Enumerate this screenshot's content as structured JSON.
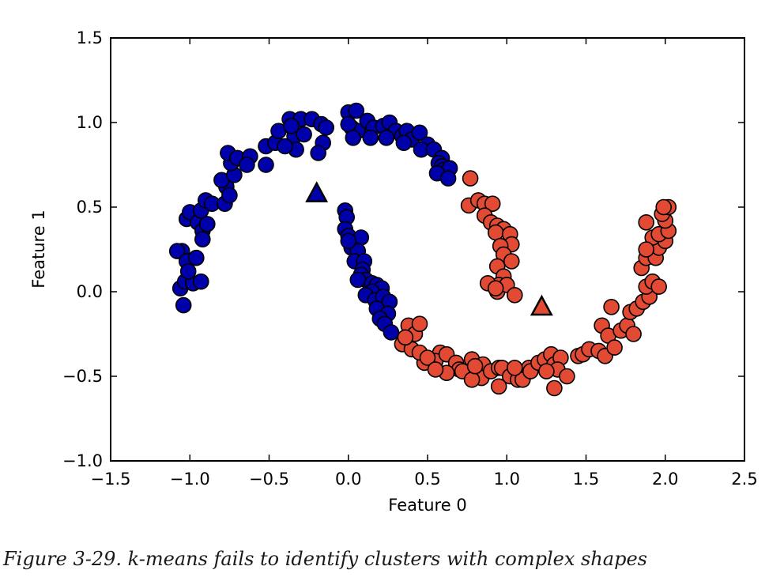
{
  "caption": "Figure 3-29. k-means fails to identify clusters with complex shapes",
  "chart_data": {
    "type": "scatter",
    "title": "",
    "xlabel": "Feature 0",
    "ylabel": "Feature 1",
    "xlim": [
      -1.5,
      2.5
    ],
    "ylim": [
      -1.0,
      1.5
    ],
    "xticks": [
      -1.5,
      -1.0,
      -0.5,
      0.0,
      0.5,
      1.0,
      1.5,
      2.0,
      2.5
    ],
    "xtick_labels": [
      "−1.5",
      "−1.0",
      "−0.5",
      "0.0",
      "0.5",
      "1.0",
      "1.5",
      "2.0",
      "2.5"
    ],
    "yticks": [
      -1.0,
      -0.5,
      0.0,
      0.5,
      1.0,
      1.5
    ],
    "ytick_labels": [
      "−1.0",
      "−0.5",
      "0.0",
      "0.5",
      "1.0",
      "1.5"
    ],
    "grid": false,
    "series": [
      {
        "color": "#0000aa",
        "marker": "circle",
        "points": [
          [
            -1.06,
            0.02
          ],
          [
            -1.04,
            -0.08
          ],
          [
            -1.03,
            0.06
          ],
          [
            -0.98,
            0.05
          ],
          [
            -1.05,
            0.24
          ],
          [
            -1.08,
            0.24
          ],
          [
            -1.02,
            0.18
          ],
          [
            -1.01,
            0.12
          ],
          [
            -0.93,
            0.06
          ],
          [
            -0.96,
            0.2
          ],
          [
            -1.02,
            0.43
          ],
          [
            -1.0,
            0.47
          ],
          [
            -0.95,
            0.41
          ],
          [
            -0.92,
            0.36
          ],
          [
            -0.92,
            0.31
          ],
          [
            -0.89,
            0.4
          ],
          [
            -0.93,
            0.48
          ],
          [
            -0.9,
            0.54
          ],
          [
            -0.86,
            0.52
          ],
          [
            -0.78,
            0.52
          ],
          [
            -0.77,
            0.62
          ],
          [
            -0.75,
            0.57
          ],
          [
            -0.8,
            0.66
          ],
          [
            -0.72,
            0.69
          ],
          [
            -0.74,
            0.76
          ],
          [
            -0.76,
            0.82
          ],
          [
            -0.7,
            0.79
          ],
          [
            -0.62,
            0.8
          ],
          [
            -0.64,
            0.75
          ],
          [
            -0.52,
            0.75
          ],
          [
            -0.52,
            0.86
          ],
          [
            -0.46,
            0.88
          ],
          [
            -0.44,
            0.95
          ],
          [
            -0.37,
            1.02
          ],
          [
            -0.34,
            0.92
          ],
          [
            -0.3,
            1.02
          ],
          [
            -0.28,
            0.93
          ],
          [
            -0.23,
            1.02
          ],
          [
            -0.17,
            0.99
          ],
          [
            -0.14,
            0.97
          ],
          [
            -0.16,
            0.88
          ],
          [
            -0.19,
            0.82
          ],
          [
            -0.33,
            0.84
          ],
          [
            -0.4,
            0.86
          ],
          [
            -0.36,
            0.98
          ],
          [
            0.0,
            1.06
          ],
          [
            0.05,
            1.07
          ],
          [
            0.02,
            0.97
          ],
          [
            0.06,
            0.95
          ],
          [
            0.0,
            0.99
          ],
          [
            0.12,
            1.01
          ],
          [
            0.16,
            0.97
          ],
          [
            0.22,
            0.98
          ],
          [
            0.26,
            1.0
          ],
          [
            0.3,
            0.95
          ],
          [
            0.34,
            0.92
          ],
          [
            0.37,
            0.95
          ],
          [
            0.4,
            0.9
          ],
          [
            0.45,
            0.94
          ],
          [
            0.5,
            0.87
          ],
          [
            0.46,
            0.84
          ],
          [
            0.54,
            0.84
          ],
          [
            0.59,
            0.79
          ],
          [
            0.57,
            0.76
          ],
          [
            0.59,
            0.74
          ],
          [
            0.61,
            0.72
          ],
          [
            0.6,
            0.72
          ],
          [
            0.64,
            0.73
          ],
          [
            0.56,
            0.7
          ],
          [
            0.63,
            0.67
          ],
          [
            0.35,
            0.88
          ],
          [
            0.14,
            0.91
          ],
          [
            0.24,
            0.91
          ],
          [
            0.03,
            0.91
          ],
          [
            -0.02,
            0.48
          ],
          [
            -0.01,
            0.44
          ],
          [
            -0.02,
            0.37
          ],
          [
            0.0,
            0.33
          ],
          [
            0.08,
            0.32
          ],
          [
            0.02,
            0.26
          ],
          [
            0.06,
            0.24
          ],
          [
            0.04,
            0.18
          ],
          [
            0.1,
            0.18
          ],
          [
            0.09,
            0.13
          ],
          [
            0.08,
            0.1
          ],
          [
            0.11,
            0.07
          ],
          [
            0.06,
            0.07
          ],
          [
            0.15,
            0.05
          ],
          [
            0.18,
            0.04
          ],
          [
            0.21,
            0.02
          ],
          [
            0.15,
            0.0
          ],
          [
            0.11,
            -0.02
          ],
          [
            0.17,
            -0.05
          ],
          [
            0.22,
            -0.03
          ],
          [
            0.26,
            -0.06
          ],
          [
            0.18,
            -0.1
          ],
          [
            0.25,
            -0.13
          ],
          [
            0.2,
            -0.16
          ],
          [
            0.23,
            -0.19
          ],
          [
            0.27,
            -0.24
          ],
          [
            0.0,
            0.3
          ]
        ]
      },
      {
        "color": "#e24a33",
        "marker": "circle",
        "points": [
          [
            0.77,
            0.67
          ],
          [
            0.76,
            0.51
          ],
          [
            0.82,
            0.54
          ],
          [
            0.86,
            0.52
          ],
          [
            0.91,
            0.52
          ],
          [
            0.86,
            0.45
          ],
          [
            0.9,
            0.41
          ],
          [
            0.94,
            0.39
          ],
          [
            0.98,
            0.37
          ],
          [
            0.93,
            0.35
          ],
          [
            1.02,
            0.34
          ],
          [
            1.03,
            0.28
          ],
          [
            0.96,
            0.27
          ],
          [
            0.98,
            0.22
          ],
          [
            1.03,
            0.18
          ],
          [
            0.94,
            0.15
          ],
          [
            0.98,
            0.09
          ],
          [
            0.95,
            0.04
          ],
          [
            0.94,
            0.0
          ],
          [
            1.0,
            0.04
          ],
          [
            1.05,
            -0.02
          ],
          [
            0.88,
            0.05
          ],
          [
            0.93,
            0.02
          ],
          [
            0.38,
            -0.2
          ],
          [
            0.42,
            -0.25
          ],
          [
            0.45,
            -0.19
          ],
          [
            0.34,
            -0.31
          ],
          [
            0.4,
            -0.34
          ],
          [
            0.36,
            -0.27
          ],
          [
            0.48,
            -0.42
          ],
          [
            0.45,
            -0.36
          ],
          [
            0.58,
            -0.36
          ],
          [
            0.55,
            -0.41
          ],
          [
            0.62,
            -0.37
          ],
          [
            0.68,
            -0.42
          ],
          [
            0.7,
            -0.46
          ],
          [
            0.62,
            -0.48
          ],
          [
            0.72,
            -0.47
          ],
          [
            0.78,
            -0.4
          ],
          [
            0.85,
            -0.43
          ],
          [
            0.84,
            -0.51
          ],
          [
            0.9,
            -0.47
          ],
          [
            0.95,
            -0.45
          ],
          [
            0.97,
            -0.45
          ],
          [
            0.95,
            -0.56
          ],
          [
            1.02,
            -0.5
          ],
          [
            1.07,
            -0.52
          ],
          [
            1.1,
            -0.52
          ],
          [
            1.14,
            -0.45
          ],
          [
            1.15,
            -0.47
          ],
          [
            1.2,
            -0.42
          ],
          [
            1.24,
            -0.4
          ],
          [
            1.28,
            -0.37
          ],
          [
            1.3,
            -0.43
          ],
          [
            1.34,
            -0.39
          ],
          [
            1.32,
            -0.46
          ],
          [
            1.25,
            -0.47
          ],
          [
            1.3,
            -0.57
          ],
          [
            1.38,
            -0.5
          ],
          [
            1.45,
            -0.38
          ],
          [
            1.48,
            -0.37
          ],
          [
            1.52,
            -0.34
          ],
          [
            1.58,
            -0.35
          ],
          [
            1.62,
            -0.38
          ],
          [
            1.6,
            -0.2
          ],
          [
            1.64,
            -0.26
          ],
          [
            1.68,
            -0.33
          ],
          [
            1.72,
            -0.23
          ],
          [
            1.76,
            -0.2
          ],
          [
            1.8,
            -0.25
          ],
          [
            1.78,
            -0.12
          ],
          [
            1.82,
            -0.1
          ],
          [
            1.86,
            -0.06
          ],
          [
            1.9,
            -0.03
          ],
          [
            1.88,
            0.03
          ],
          [
            1.92,
            0.06
          ],
          [
            1.96,
            0.03
          ],
          [
            1.85,
            0.14
          ],
          [
            1.88,
            0.2
          ],
          [
            1.94,
            0.2
          ],
          [
            1.96,
            0.26
          ],
          [
            2.0,
            0.3
          ],
          [
            1.92,
            0.32
          ],
          [
            1.96,
            0.34
          ],
          [
            2.02,
            0.36
          ],
          [
            2.0,
            0.42
          ],
          [
            1.98,
            0.46
          ],
          [
            2.02,
            0.5
          ],
          [
            1.99,
            0.5
          ],
          [
            1.88,
            0.41
          ],
          [
            0.5,
            -0.39
          ],
          [
            0.55,
            -0.46
          ],
          [
            0.78,
            -0.52
          ],
          [
            0.8,
            -0.44
          ],
          [
            1.05,
            -0.45
          ],
          [
            1.66,
            -0.09
          ],
          [
            1.88,
            0.25
          ]
        ]
      }
    ],
    "centroids": [
      {
        "x": -0.2,
        "y": 0.58,
        "color": "#0000aa",
        "marker": "triangle"
      },
      {
        "x": 1.22,
        "y": -0.09,
        "color": "#e24a33",
        "marker": "triangle"
      }
    ]
  }
}
